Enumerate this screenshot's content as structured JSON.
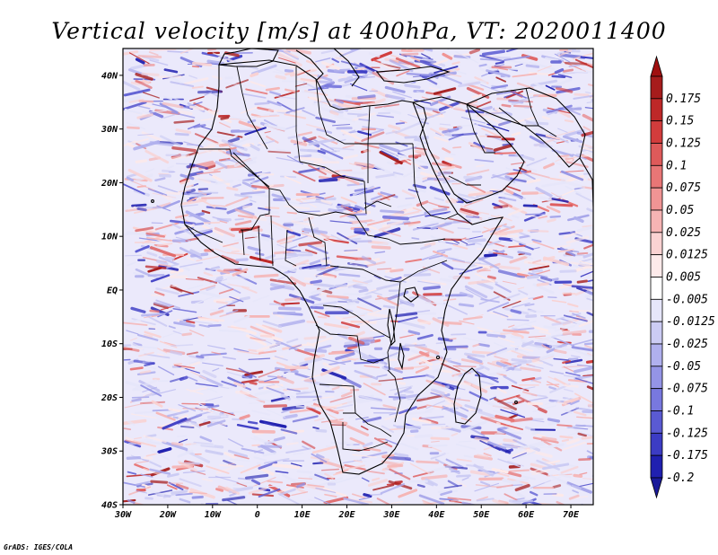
{
  "title": "Vertical velocity [m/s] at 400hPa, VT: 2020011400",
  "credit": "GrADS: IGES/COLA",
  "chart_data": {
    "type": "heatmap",
    "title": "Vertical velocity [m/s] at 400hPa, VT: 2020011400",
    "variable": "Vertical velocity",
    "units": "m/s",
    "level": "400hPa",
    "valid_time": "2020011400",
    "x_range": [
      -30,
      75
    ],
    "y_range": [
      -40,
      45
    ],
    "x_ticks": [
      {
        "value": -30,
        "label": "30W"
      },
      {
        "value": -20,
        "label": "20W"
      },
      {
        "value": -10,
        "label": "10W"
      },
      {
        "value": 0,
        "label": "0"
      },
      {
        "value": 10,
        "label": "10E"
      },
      {
        "value": 20,
        "label": "20E"
      },
      {
        "value": 30,
        "label": "30E"
      },
      {
        "value": 40,
        "label": "40E"
      },
      {
        "value": 50,
        "label": "50E"
      },
      {
        "value": 60,
        "label": "60E"
      },
      {
        "value": 70,
        "label": "70E"
      }
    ],
    "y_ticks": [
      {
        "value": 40,
        "label": "40N"
      },
      {
        "value": 30,
        "label": "30N"
      },
      {
        "value": 20,
        "label": "20N"
      },
      {
        "value": 10,
        "label": "10N"
      },
      {
        "value": 0,
        "label": "EQ"
      },
      {
        "value": -10,
        "label": "10S"
      },
      {
        "value": -20,
        "label": "20S"
      },
      {
        "value": -30,
        "label": "30S"
      },
      {
        "value": -40,
        "label": "40S"
      }
    ],
    "colorbar": [
      {
        "label": "0.175",
        "color": "#a61c1c"
      },
      {
        "label": "0.15",
        "color": "#be2828"
      },
      {
        "label": "0.125",
        "color": "#d23c3c"
      },
      {
        "label": "0.1",
        "color": "#de5a5a"
      },
      {
        "label": "0.075",
        "color": "#e87676"
      },
      {
        "label": "0.05",
        "color": "#f09494"
      },
      {
        "label": "0.025",
        "color": "#f6b4b4"
      },
      {
        "label": "0.0125",
        "color": "#fad2d2"
      },
      {
        "label": "0.005",
        "color": "#fdeaea"
      },
      {
        "label": "-0.005",
        "color": "#ffffff"
      },
      {
        "label": "-0.0125",
        "color": "#e6e6fa"
      },
      {
        "label": "-0.025",
        "color": "#ccccf4"
      },
      {
        "label": "-0.05",
        "color": "#b0b0ee"
      },
      {
        "label": "-0.075",
        "color": "#9494e6"
      },
      {
        "label": "-0.1",
        "color": "#7878de"
      },
      {
        "label": "-0.125",
        "color": "#5a5ad2"
      },
      {
        "label": "-0.175",
        "color": "#3c3cc4"
      },
      {
        "label": "-0.2",
        "color": "#2020b0"
      }
    ],
    "colorbar_top_color": "#a01010",
    "colorbar_bottom_color": "#1a1a9a"
  }
}
